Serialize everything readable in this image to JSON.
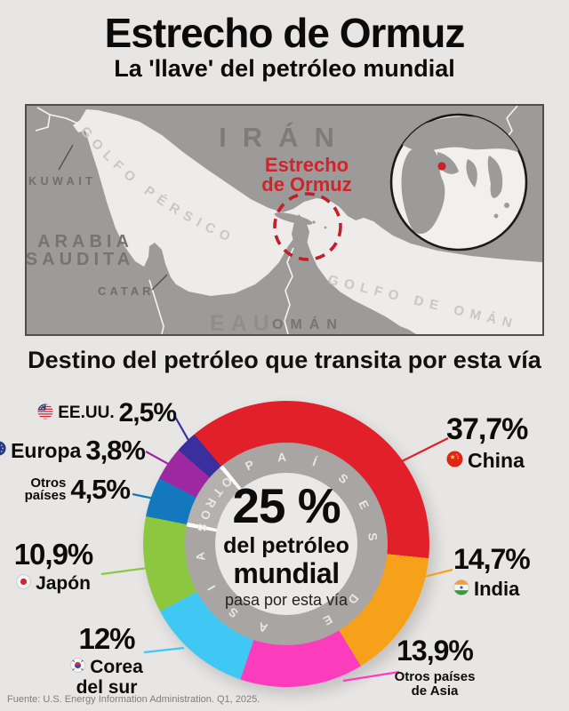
{
  "header": {
    "title": "Estrecho de Ormuz",
    "subtitle": "La 'llave' del petróleo mundial"
  },
  "map": {
    "country_labels": {
      "iran": "IRÁN",
      "kuwait": "KUWAIT",
      "arabia_line1": "ARABIA",
      "arabia_line2": "SAUDITA",
      "catar": "CATAR",
      "eau": "EAU",
      "oman": "OMÁN"
    },
    "water_labels": {
      "persian_gulf": "GOLFO PÉRSICO",
      "gulf_of_oman": "GOLFO DE OMÁN"
    },
    "strait_label": {
      "line1": "Estrecho",
      "line2": "de Ormuz"
    },
    "colors": {
      "land": "#9c9b99",
      "water": "#edecea",
      "highlight": "#cf2030"
    }
  },
  "section_title": "Destino del petróleo que transita por esta vía",
  "chart_data": {
    "type": "donut",
    "title": "Destino del petróleo que transita por esta vía",
    "unit": "%",
    "direction": "clockwise",
    "start_angle_deg": -40,
    "center_label": {
      "headline": "25 %",
      "line2": "del petróleo",
      "line3": "mundial",
      "line4": "pasa por esta vía"
    },
    "ring_text": {
      "asia_group": "PAÍSES DE ASIA",
      "others_group": "OTROS"
    },
    "ring_colors": {
      "asia_arc": "#a8a5a3",
      "others_arc": "#b4b1af"
    },
    "segments": [
      {
        "label": "China",
        "value": 37.7,
        "value_text": "37,7%",
        "color": "#e2202a",
        "flag": "china"
      },
      {
        "label": "India",
        "value": 14.7,
        "value_text": "14,7%",
        "color": "#f7a11a",
        "flag": "india"
      },
      {
        "label": "Otros países de Asia",
        "label_lines": [
          "Otros países",
          "de Asia"
        ],
        "value": 13.9,
        "value_text": "13,9%",
        "color": "#fb3cbd",
        "flag": ""
      },
      {
        "label": "Corea del sur",
        "label_lines": [
          "Corea",
          "del sur"
        ],
        "value": 12,
        "value_text": "12%",
        "color": "#3fc8f4",
        "flag": "south-korea"
      },
      {
        "label": "Japón",
        "value": 10.9,
        "value_text": "10,9%",
        "color": "#8dc63f",
        "flag": "japan"
      },
      {
        "label": "Otros países",
        "label_lines": [
          "Otros",
          "países"
        ],
        "value": 4.5,
        "value_text": "4,5%",
        "color": "#1478be",
        "flag": ""
      },
      {
        "label": "Europa",
        "value": 3.8,
        "value_text": "3,8%",
        "color": "#9d28a2",
        "flag": "europe"
      },
      {
        "label": "EE.UU.",
        "value": 2.5,
        "value_text": "2,5%",
        "color": "#3a2f9f",
        "flag": "usa"
      }
    ]
  },
  "footer": {
    "source": "Fuente: U.S. Energy Information Administration. Q1, 2025."
  }
}
